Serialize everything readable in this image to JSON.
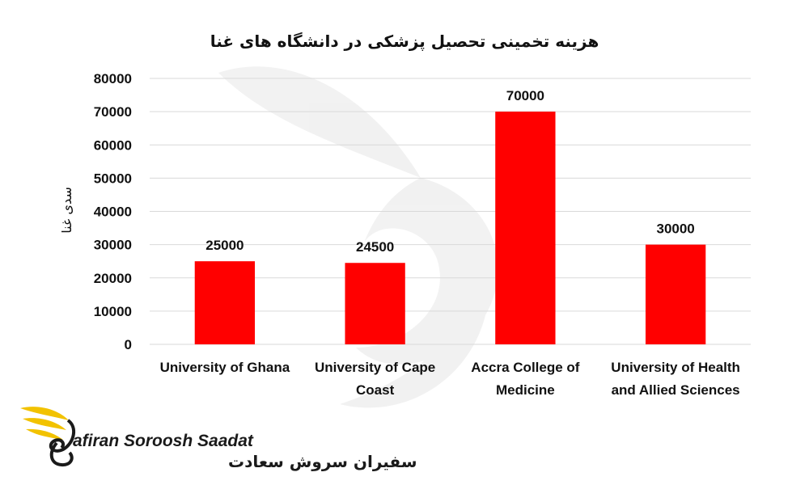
{
  "chart_data": {
    "type": "bar",
    "title": "هزینه تخمینی تحصیل پزشکی در دانشگاه های غنا",
    "ylabel": "سدی غنا",
    "xlabel": "",
    "ylim": [
      0,
      80000
    ],
    "yticks": [
      0,
      10000,
      20000,
      30000,
      40000,
      50000,
      60000,
      70000,
      80000
    ],
    "grid": true,
    "categories": [
      [
        "University of Ghana"
      ],
      [
        "University of Cape",
        "Coast"
      ],
      [
        "Accra College of",
        "Medicine"
      ],
      [
        "University of Health",
        "and Allied Sciences"
      ]
    ],
    "values": [
      25000,
      24500,
      70000,
      30000
    ],
    "data_labels": [
      "25000",
      "24500",
      "70000",
      "30000"
    ],
    "bar_color": "#ff0000"
  },
  "logo": {
    "latin": "afiran Soroosh Saadat",
    "persian": "سفیران سروش سعادت",
    "accent": "#f2c200"
  }
}
